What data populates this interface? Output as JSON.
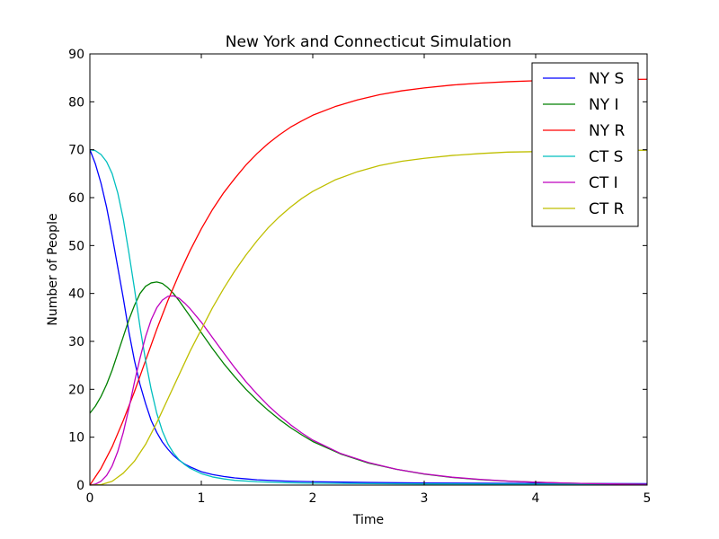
{
  "chart_data": {
    "type": "line",
    "title": "New York and Connecticut Simulation",
    "xlabel": "Time",
    "ylabel": "Number of People",
    "xlim": [
      0,
      5
    ],
    "ylim": [
      0,
      90
    ],
    "x_ticks": [
      0,
      1,
      2,
      3,
      4,
      5
    ],
    "x_tick_labels": [
      "0",
      "1",
      "2",
      "3",
      "4",
      "5"
    ],
    "y_ticks": [
      0,
      10,
      20,
      30,
      40,
      50,
      60,
      70,
      80,
      90
    ],
    "y_tick_labels": [
      "0",
      "10",
      "20",
      "30",
      "40",
      "50",
      "60",
      "70",
      "80",
      "90"
    ],
    "grid": false,
    "legend_position": "top-right",
    "series": [
      {
        "name": "NY S",
        "color": "#0000ff",
        "x": [
          0,
          0.05,
          0.1,
          0.15,
          0.2,
          0.25,
          0.3,
          0.35,
          0.4,
          0.45,
          0.5,
          0.55,
          0.6,
          0.65,
          0.7,
          0.75,
          0.8,
          0.85,
          0.9,
          1.0,
          1.1,
          1.2,
          1.3,
          1.4,
          1.5,
          1.75,
          2.0,
          2.5,
          3.0,
          3.5,
          4.0,
          4.5,
          5.0
        ],
        "y": [
          70,
          67,
          63,
          58,
          52,
          45.5,
          39,
          32,
          26,
          21,
          17,
          13.5,
          11,
          9,
          7.5,
          6.2,
          5.2,
          4.4,
          3.8,
          2.8,
          2.2,
          1.8,
          1.5,
          1.3,
          1.1,
          0.85,
          0.7,
          0.55,
          0.45,
          0.4,
          0.35,
          0.32,
          0.3
        ]
      },
      {
        "name": "NY I",
        "color": "#008000",
        "x": [
          0,
          0.05,
          0.1,
          0.15,
          0.2,
          0.25,
          0.3,
          0.35,
          0.4,
          0.45,
          0.5,
          0.55,
          0.6,
          0.65,
          0.7,
          0.75,
          0.8,
          0.9,
          1.0,
          1.1,
          1.2,
          1.3,
          1.4,
          1.5,
          1.6,
          1.7,
          1.8,
          1.9,
          2.0,
          2.25,
          2.5,
          2.75,
          3.0,
          3.25,
          3.5,
          3.75,
          4.0,
          4.25,
          4.5,
          4.75,
          5.0
        ],
        "y": [
          15,
          16.5,
          18.5,
          21,
          24,
          27.5,
          31,
          34.5,
          37.5,
          40,
          41.5,
          42.2,
          42.4,
          42.1,
          41.2,
          40,
          38.5,
          35.2,
          31.8,
          28.5,
          25.4,
          22.6,
          20,
          17.7,
          15.6,
          13.7,
          12,
          10.5,
          9.1,
          6.5,
          4.6,
          3.3,
          2.3,
          1.6,
          1.15,
          0.82,
          0.6,
          0.42,
          0.3,
          0.22,
          0.16
        ]
      },
      {
        "name": "NY R",
        "color": "#ff0000",
        "x": [
          0,
          0.1,
          0.2,
          0.3,
          0.4,
          0.5,
          0.6,
          0.7,
          0.8,
          0.9,
          1.0,
          1.1,
          1.2,
          1.3,
          1.4,
          1.5,
          1.6,
          1.7,
          1.8,
          1.9,
          2.0,
          2.2,
          2.4,
          2.6,
          2.8,
          3.0,
          3.25,
          3.5,
          3.75,
          4.0,
          4.5,
          5.0
        ],
        "y": [
          0,
          3.5,
          8,
          13.5,
          19.5,
          26,
          32.5,
          38.5,
          44,
          49,
          53.5,
          57.5,
          61,
          64,
          66.8,
          69.2,
          71.3,
          73.1,
          74.7,
          76,
          77.2,
          79,
          80.4,
          81.5,
          82.3,
          82.9,
          83.5,
          83.9,
          84.2,
          84.4,
          84.6,
          84.7
        ]
      },
      {
        "name": "CT S",
        "color": "#00bfbf",
        "x": [
          0,
          0.05,
          0.1,
          0.15,
          0.2,
          0.25,
          0.3,
          0.35,
          0.4,
          0.45,
          0.5,
          0.55,
          0.6,
          0.65,
          0.7,
          0.75,
          0.8,
          0.85,
          0.9,
          1.0,
          1.1,
          1.2,
          1.3,
          1.5,
          1.75,
          2.0,
          2.5,
          3.0,
          4.0,
          5.0
        ],
        "y": [
          70,
          69.8,
          69,
          67.5,
          65,
          61,
          55.5,
          48.5,
          41,
          33,
          26,
          20,
          15,
          11.3,
          8.6,
          6.7,
          5.3,
          4.3,
          3.5,
          2.4,
          1.7,
          1.3,
          1.0,
          0.7,
          0.5,
          0.4,
          0.3,
          0.25,
          0.2,
          0.18
        ]
      },
      {
        "name": "CT I",
        "color": "#bf00bf",
        "x": [
          0,
          0.05,
          0.1,
          0.15,
          0.2,
          0.25,
          0.3,
          0.35,
          0.4,
          0.45,
          0.5,
          0.55,
          0.6,
          0.65,
          0.7,
          0.75,
          0.8,
          0.85,
          0.9,
          1.0,
          1.1,
          1.2,
          1.3,
          1.4,
          1.5,
          1.6,
          1.7,
          1.8,
          1.9,
          2.0,
          2.25,
          2.5,
          2.75,
          3.0,
          3.25,
          3.5,
          3.75,
          4.0,
          4.25,
          4.5,
          4.75,
          5.0
        ],
        "y": [
          0,
          0.2,
          0.8,
          2,
          4,
          7,
          11,
          16,
          21.5,
          26.5,
          31,
          34.5,
          37,
          38.6,
          39.4,
          39.5,
          39,
          38,
          36.8,
          34,
          30.8,
          27.6,
          24.5,
          21.6,
          19,
          16.6,
          14.5,
          12.6,
          10.9,
          9.4,
          6.6,
          4.7,
          3.3,
          2.35,
          1.65,
          1.2,
          0.85,
          0.6,
          0.43,
          0.31,
          0.22,
          0.16
        ]
      },
      {
        "name": "CT R",
        "color": "#bfbf00",
        "x": [
          0,
          0.1,
          0.2,
          0.3,
          0.4,
          0.5,
          0.6,
          0.7,
          0.8,
          0.9,
          1.0,
          1.1,
          1.2,
          1.3,
          1.4,
          1.5,
          1.6,
          1.7,
          1.8,
          1.9,
          2.0,
          2.2,
          2.4,
          2.6,
          2.8,
          3.0,
          3.25,
          3.5,
          3.75,
          4.0,
          4.5,
          5.0
        ],
        "y": [
          0,
          0.1,
          0.8,
          2.5,
          5,
          8.5,
          13,
          18,
          23,
          28,
          32.5,
          37,
          41,
          44.7,
          48,
          51,
          53.7,
          56,
          58,
          59.8,
          61.3,
          63.7,
          65.4,
          66.7,
          67.6,
          68.2,
          68.8,
          69.2,
          69.5,
          69.6,
          69.8,
          69.9
        ]
      }
    ]
  }
}
